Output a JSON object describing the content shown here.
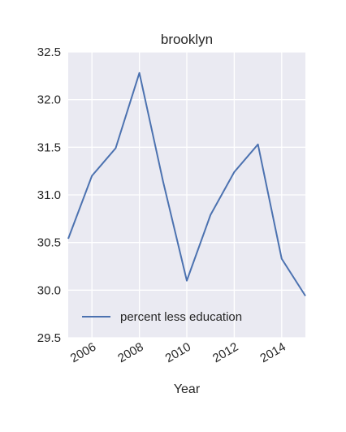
{
  "chart_data": {
    "type": "line",
    "title": "brooklyn",
    "xlabel": "Year",
    "ylabel": "",
    "x": [
      2005,
      2006,
      2007,
      2008,
      2009,
      2010,
      2011,
      2012,
      2013,
      2014,
      2015
    ],
    "x_ticks": [
      "2006",
      "2008",
      "2010",
      "2012",
      "2014"
    ],
    "y_ticks": [
      "29.5",
      "30.0",
      "30.5",
      "31.0",
      "31.5",
      "32.0",
      "32.5"
    ],
    "xlim": [
      2005,
      2015
    ],
    "ylim": [
      29.5,
      32.5
    ],
    "grid": true,
    "legend_position": "lower-left",
    "series": [
      {
        "name": "percent less education",
        "color": "#4c72b0",
        "values": [
          30.54,
          31.2,
          31.49,
          32.28,
          31.14,
          30.1,
          30.79,
          31.24,
          31.53,
          30.33,
          29.94
        ]
      }
    ],
    "colors": {
      "plot_background": "#eaeaf2",
      "grid": "#ffffff",
      "text": "#262626"
    }
  }
}
